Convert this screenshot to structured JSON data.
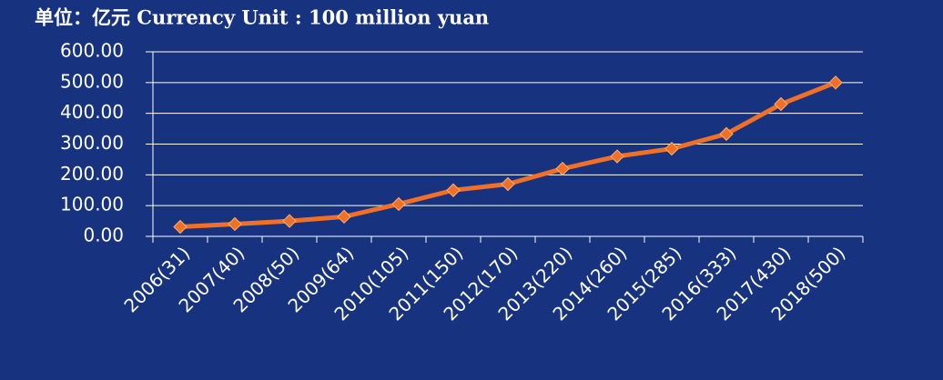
{
  "chart_data": {
    "type": "line",
    "title": "单位：亿元 Currency Unit : 100 million yuan",
    "categories": [
      "2006(31)",
      "2007(40)",
      "2008(50)",
      "2009(64)",
      "2010(105)",
      "2011(150)",
      "2012(170)",
      "2013(220)",
      "2014(260)",
      "2015(285)",
      "2016(333)",
      "2017(430)",
      "2018(500)"
    ],
    "series": [
      {
        "color": "#f07028",
        "values": [
          31,
          40,
          50,
          64,
          105,
          150,
          170,
          220,
          260,
          285,
          333,
          430,
          500
        ]
      }
    ],
    "ylim": [
      0,
      600
    ],
    "yticks": [
      {
        "value": 0,
        "label": "0.00"
      },
      {
        "value": 100,
        "label": "100.00"
      },
      {
        "value": 200,
        "label": "200.00"
      },
      {
        "value": 300,
        "label": "300.00"
      },
      {
        "value": 400,
        "label": "400.00"
      },
      {
        "value": 500,
        "label": "500.00"
      },
      {
        "value": 600,
        "label": "600.00"
      }
    ],
    "grid": true
  }
}
